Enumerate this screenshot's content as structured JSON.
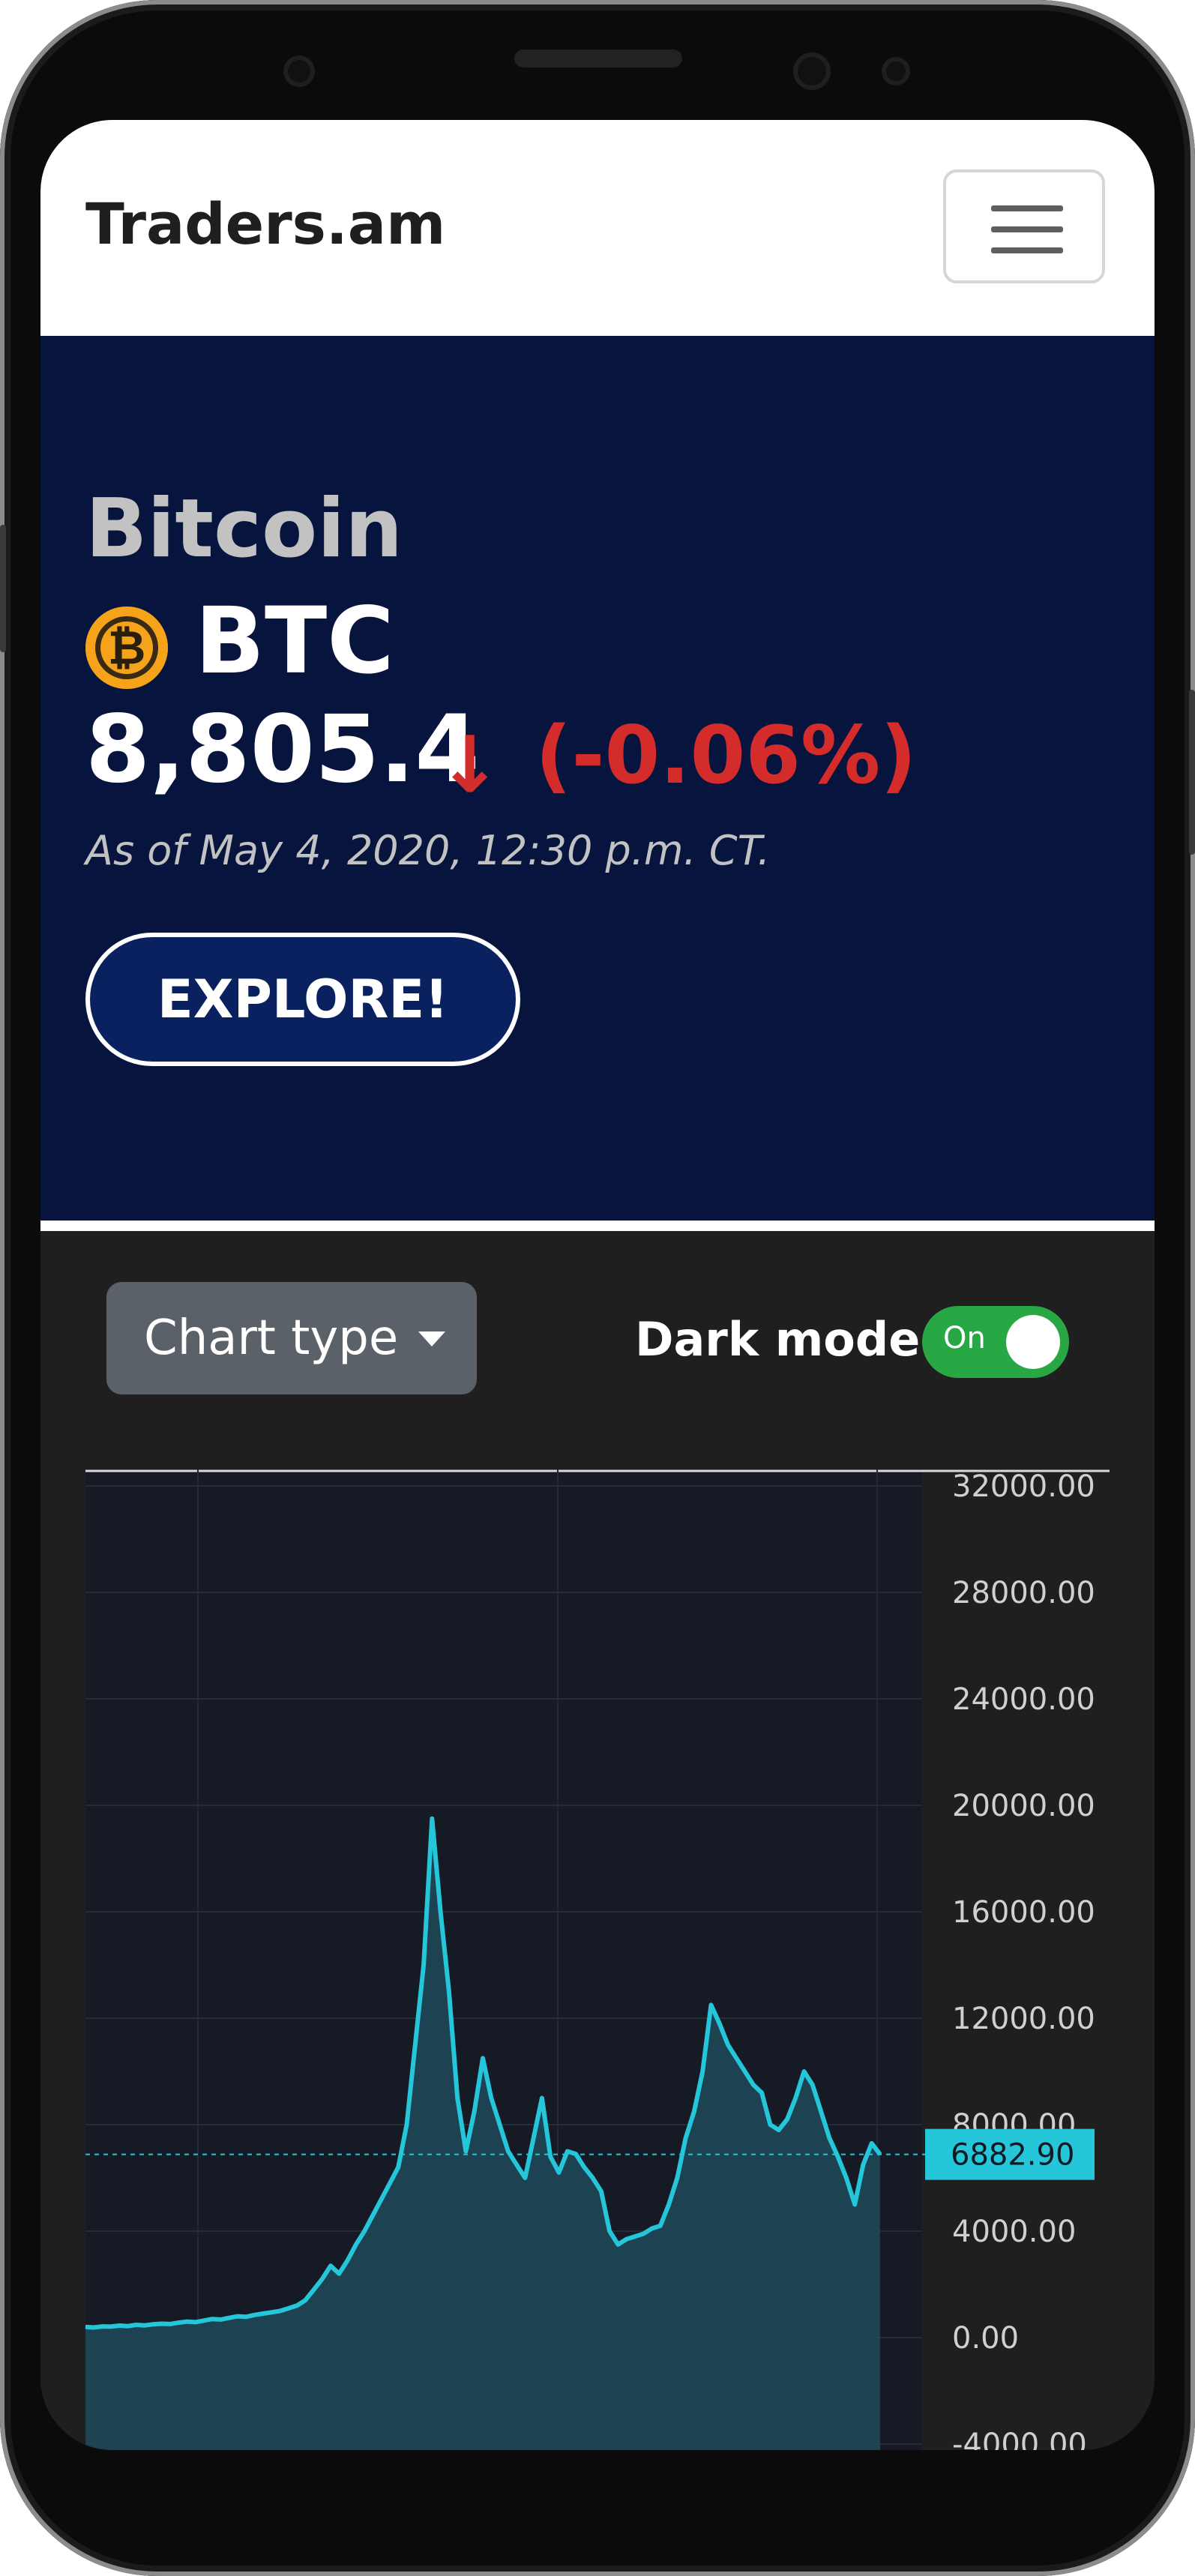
{
  "navbar": {
    "brand": "Traders.am"
  },
  "hero": {
    "name": "Bitcoin",
    "icon": "bitcoin-icon",
    "symbol": "BTC",
    "price": "8,805.4",
    "change_icon": "arrow-down-icon",
    "change": "(-0.06%)",
    "as_of": "As of May 4, 2020, 12:30 p.m. CT.",
    "explore_label": "EXPLORE!",
    "colors": {
      "background": "#07143d",
      "negative": "#d42b2b"
    }
  },
  "controls": {
    "chart_type_label": "Chart type",
    "dark_mode_label": "Dark mode",
    "dark_mode_state": "On"
  },
  "chart_data": {
    "type": "area",
    "y_ticks": [
      "32000.00",
      "28000.00",
      "24000.00",
      "20000.00",
      "16000.00",
      "12000.00",
      "8000.00",
      "4000.00",
      "0.00",
      "-4000.00"
    ],
    "ylim": [
      -4000,
      32000
    ],
    "last_value_label": "6882.90",
    "last_value": 6882.9,
    "grid": true,
    "line_color": "#26c6da",
    "series": [
      {
        "values": [
          400,
          380,
          420,
          410,
          450,
          430,
          480,
          460,
          500,
          520,
          510,
          560,
          600,
          580,
          640,
          700,
          680,
          740,
          800,
          780,
          850,
          900,
          950,
          1000,
          1100,
          1200,
          1400,
          1800,
          2200,
          2700,
          2400,
          2900,
          3500,
          4000,
          4600,
          5200,
          5800,
          6400,
          8000,
          11000,
          14000,
          19500,
          16000,
          13000,
          9000,
          7000,
          8500,
          10500,
          9000,
          8000,
          7000,
          6500,
          6000,
          7500,
          9000,
          6800,
          6200,
          7000,
          6900,
          6400,
          6000,
          5500,
          4000,
          3500,
          3700,
          3800,
          3900,
          4100,
          4200,
          5000,
          6000,
          7500,
          8500,
          10000,
          12500,
          11800,
          11000,
          10500,
          10000,
          9500,
          9200,
          8000,
          7800,
          8200,
          9000,
          10000,
          9500,
          8500,
          7500,
          6800,
          6000,
          5000,
          6500,
          7300,
          6882.9
        ]
      }
    ]
  }
}
